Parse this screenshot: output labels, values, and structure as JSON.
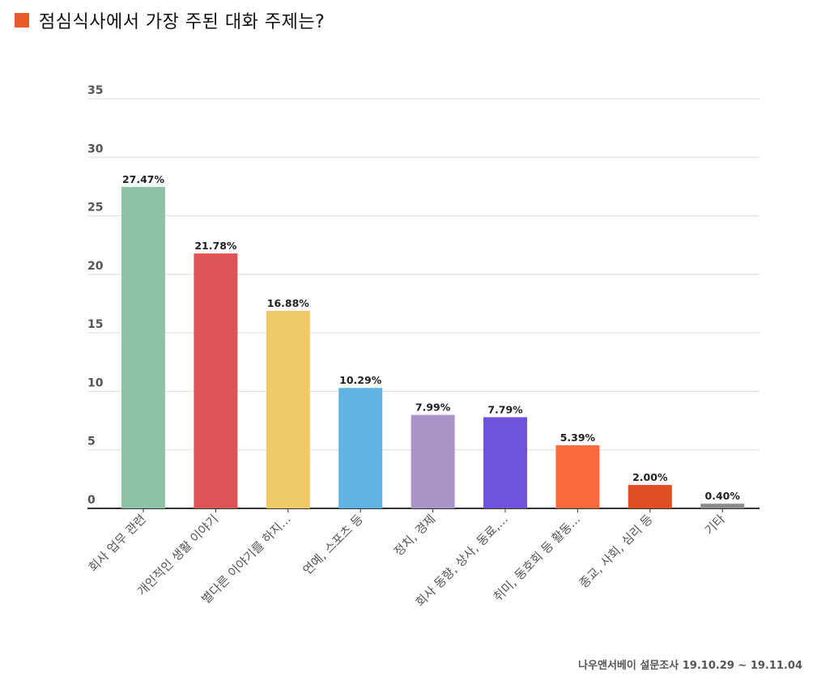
{
  "title": "점심식사에서 가장 주된 대화 주제는?",
  "source": "나우앤서베이 설문조사 19.10.29 ~ 19.11.04",
  "colors": {
    "title_square": "#ee5a2a",
    "grid": "#dddddd",
    "axis": "#333333"
  },
  "chart_data": {
    "type": "bar",
    "title": "점심식사에서 가장 주된 대화 주제는?",
    "ylim": [
      0,
      35
    ],
    "yticks": [
      0,
      5,
      10,
      15,
      20,
      25,
      30,
      35
    ],
    "grid": true,
    "categories": [
      "회사 업무 관련",
      "개인적인 생활 이야기",
      "별다른 이야기를 하지...",
      "연예, 스포츠 등",
      "정치, 경제",
      "회사 동향, 상사, 동료,...",
      "취미, 동호회 등 활동...",
      "종교, 사회, 심리 등",
      "기타"
    ],
    "values": [
      27.47,
      21.78,
      16.88,
      10.29,
      7.99,
      7.79,
      5.39,
      2.0,
      0.4
    ],
    "labels": [
      "27.47%",
      "21.78%",
      "16.88%",
      "10.29%",
      "7.99%",
      "7.79%",
      "5.39%",
      "2.00%",
      "0.40%"
    ],
    "colors": [
      "#8fc3a7",
      "#dc5456",
      "#f0ca68",
      "#5fb4e4",
      "#ab93c7",
      "#6f53dc",
      "#fc6a3b",
      "#e04e24",
      "#8c8c8c"
    ]
  }
}
